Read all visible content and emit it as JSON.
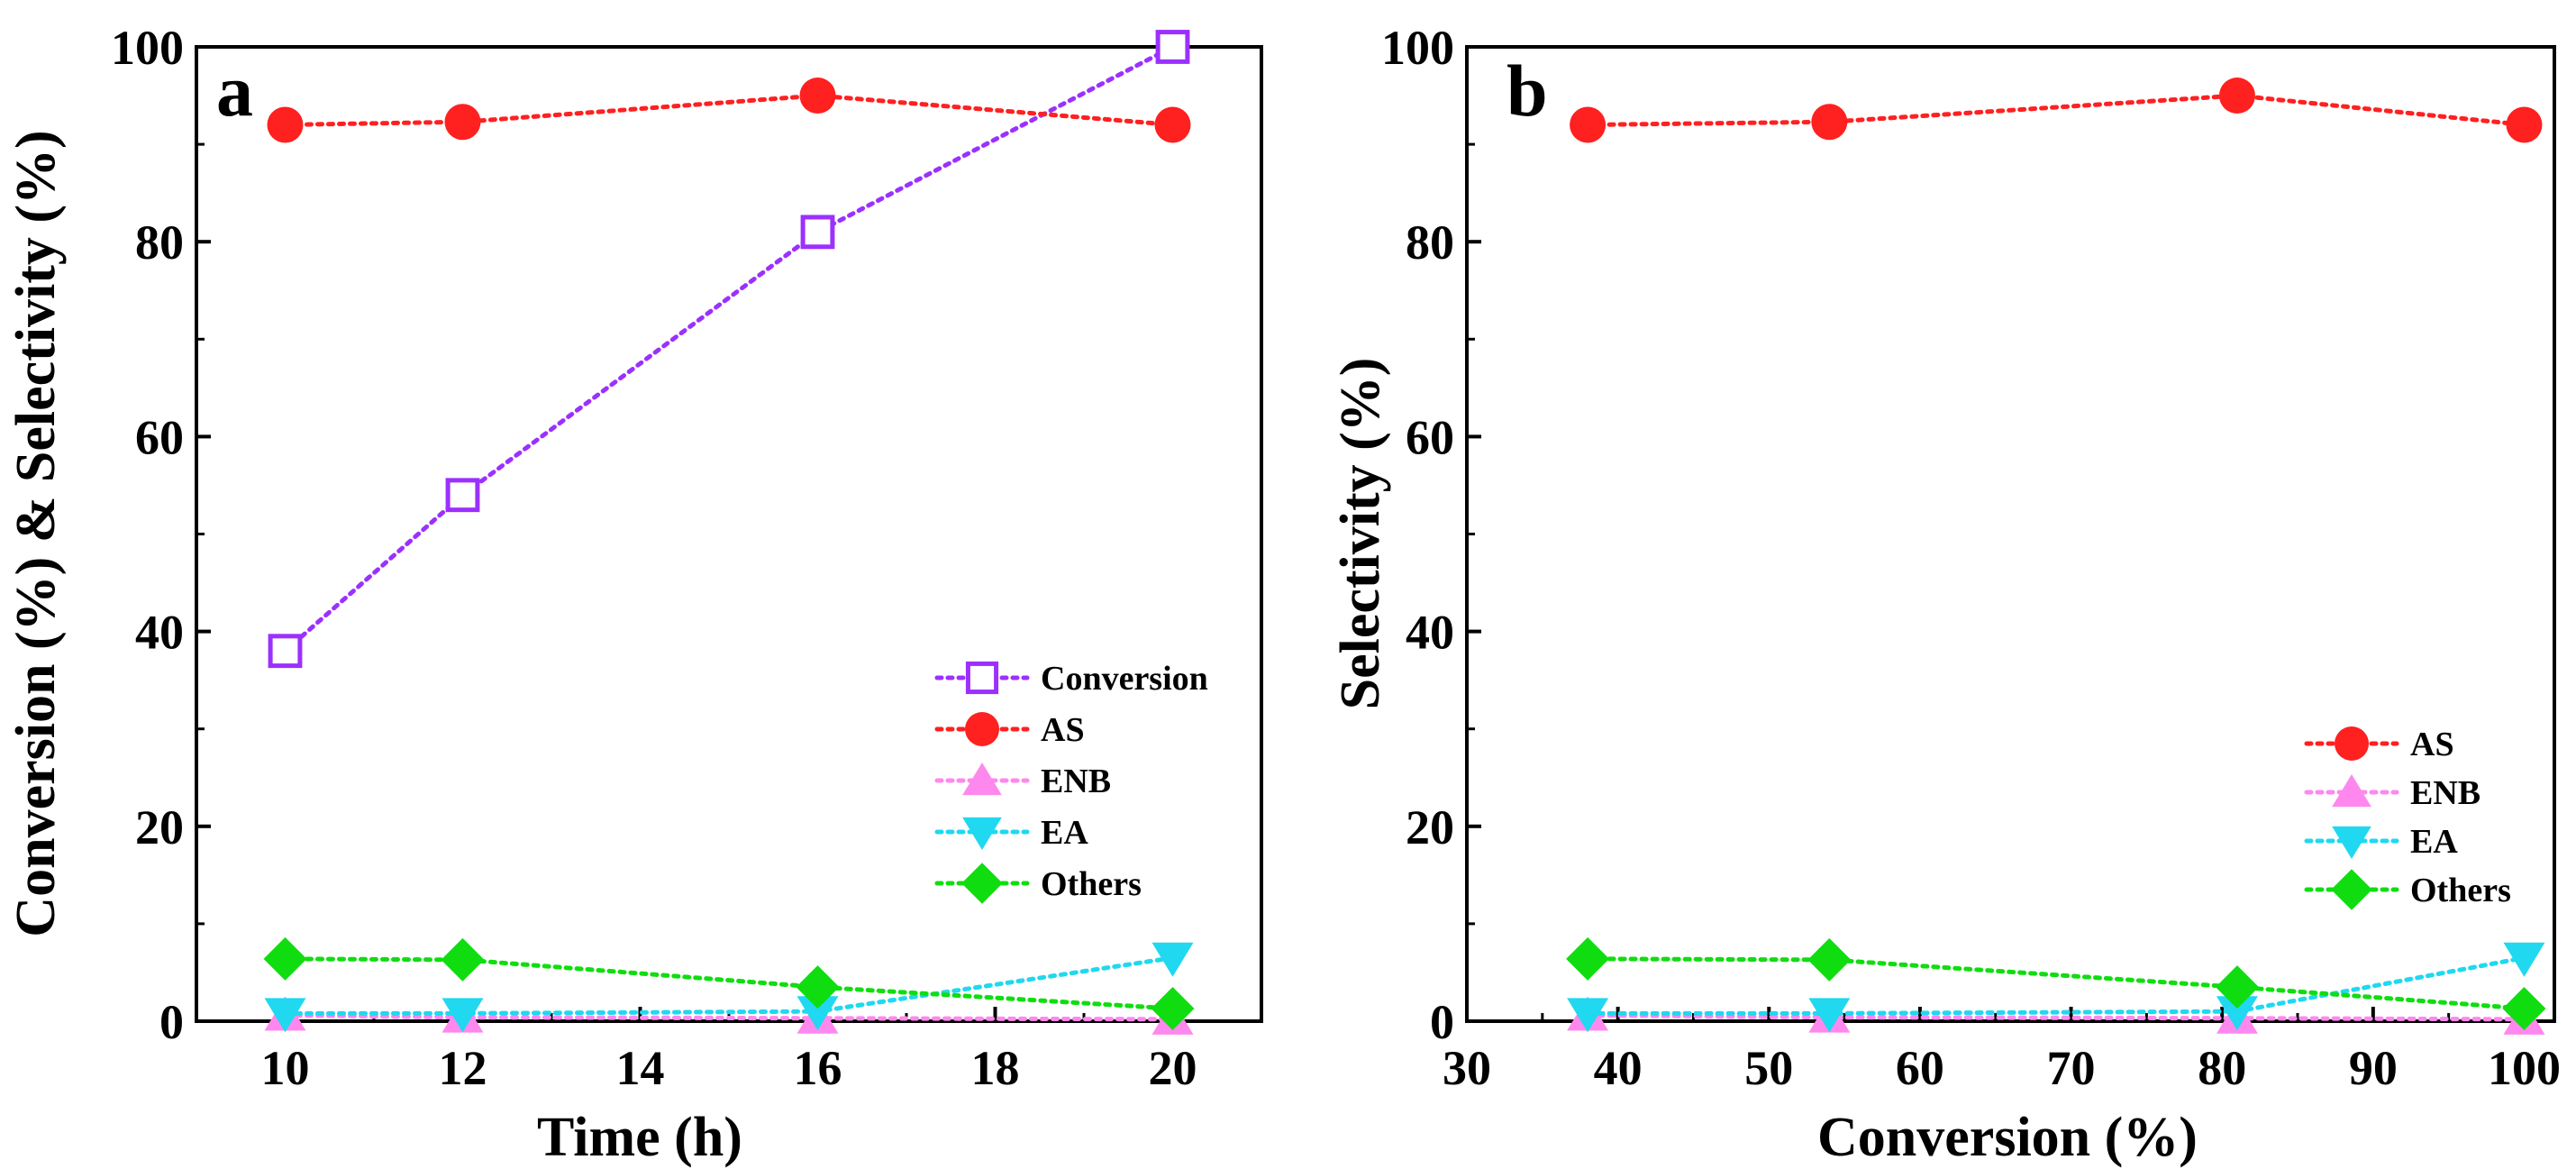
{
  "chart_data": [
    {
      "panel": "a",
      "type": "line",
      "title": "",
      "xlabel": "Time (h)",
      "ylabel": "Conversion (%) & Selectivity (%)",
      "xlim": [
        9,
        21
      ],
      "ylim": [
        0,
        100
      ],
      "xticks": [
        10,
        12,
        14,
        16,
        18,
        20
      ],
      "yticks": [
        0,
        20,
        40,
        60,
        80,
        100
      ],
      "legend_position": "bottom-right",
      "series": [
        {
          "name": "Conversion",
          "marker": "open-square",
          "color": "#9b30ff",
          "x": [
            10,
            12,
            16,
            20
          ],
          "y": [
            38,
            54,
            81,
            100
          ]
        },
        {
          "name": "AS",
          "marker": "circle",
          "color": "#ff2020",
          "x": [
            10,
            12,
            16,
            20
          ],
          "y": [
            92,
            92.3,
            95,
            92
          ]
        },
        {
          "name": "ENB",
          "marker": "triangle-up",
          "color": "#ff88ee",
          "x": [
            10,
            12,
            16,
            20
          ],
          "y": [
            0.6,
            0.4,
            0.3,
            0.2
          ]
        },
        {
          "name": "EA",
          "marker": "triangle-down",
          "color": "#20d8f0",
          "x": [
            10,
            12,
            16,
            20
          ],
          "y": [
            0.8,
            0.8,
            1,
            6.5
          ]
        },
        {
          "name": "Others",
          "marker": "diamond",
          "color": "#10dd10",
          "x": [
            10,
            12,
            16,
            20
          ],
          "y": [
            6.4,
            6.3,
            3.5,
            1.3
          ]
        }
      ]
    },
    {
      "panel": "b",
      "type": "line",
      "title": "",
      "xlabel": "Conversion (%)",
      "ylabel": "Selectivity (%)",
      "xlim": [
        30,
        102
      ],
      "ylim": [
        0,
        100
      ],
      "xticks": [
        30,
        40,
        50,
        60,
        70,
        80,
        90,
        100
      ],
      "yticks": [
        0,
        20,
        40,
        60,
        80,
        100
      ],
      "legend_position": "bottom-right",
      "series": [
        {
          "name": "AS",
          "marker": "circle",
          "color": "#ff2020",
          "x": [
            38,
            54,
            81,
            100
          ],
          "y": [
            92,
            92.3,
            95,
            92
          ]
        },
        {
          "name": "ENB",
          "marker": "triangle-up",
          "color": "#ff88ee",
          "x": [
            38,
            54,
            81,
            100
          ],
          "y": [
            0.6,
            0.4,
            0.3,
            0.2
          ]
        },
        {
          "name": "EA",
          "marker": "triangle-down",
          "color": "#20d8f0",
          "x": [
            38,
            54,
            81,
            100
          ],
          "y": [
            0.8,
            0.8,
            1,
            6.5
          ]
        },
        {
          "name": "Others",
          "marker": "diamond",
          "color": "#10dd10",
          "x": [
            38,
            54,
            81,
            100
          ],
          "y": [
            6.4,
            6.3,
            3.5,
            1.3
          ]
        }
      ]
    }
  ]
}
